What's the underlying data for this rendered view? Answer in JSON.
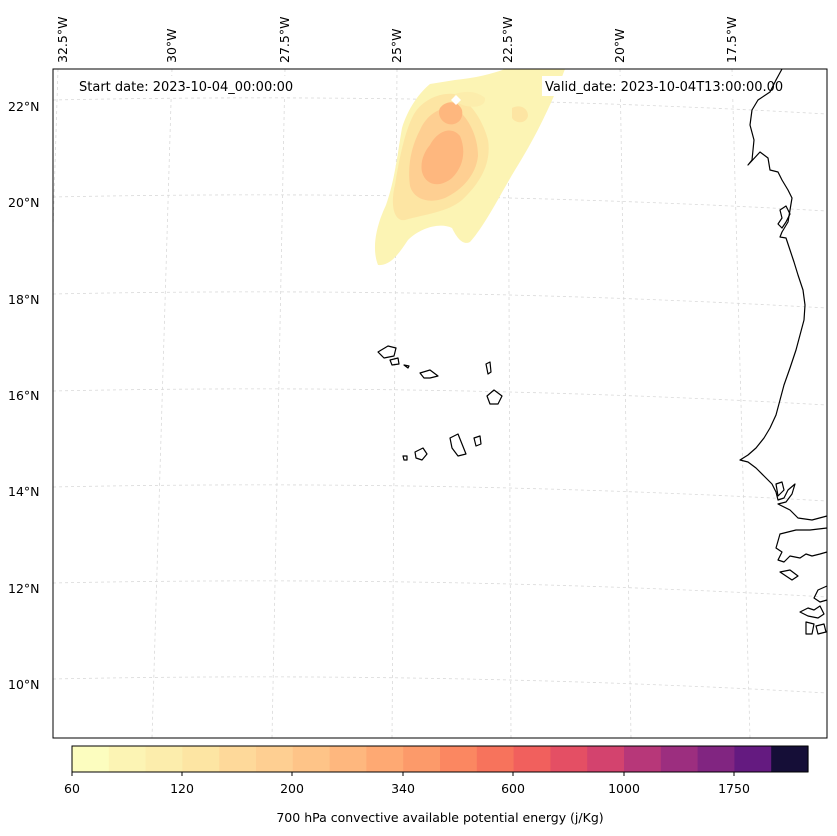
{
  "header": {
    "start_date": "Start date: 2023-10-04_00:00:00",
    "valid_date": "Valid_date: 2023-10-04T13:00:00.00"
  },
  "map": {
    "lon_labels": [
      "32.5°W",
      "30°W",
      "27.5°W",
      "25°W",
      "22.5°W",
      "20°W",
      "17.5°W"
    ],
    "lat_labels": [
      "22°N",
      "20°N",
      "18°N",
      "16°N",
      "14°N",
      "12°N",
      "10°N"
    ],
    "colors": {
      "coast": "#000000",
      "grid": "#cccccc",
      "frame": "#000000"
    }
  },
  "colorbar": {
    "title": "700 hPa convective available potential energy (j/Kg)",
    "tick_labels": [
      "60",
      "120",
      "200",
      "340",
      "600",
      "1000",
      "1750"
    ],
    "levels": [
      60,
      80,
      100,
      120,
      140,
      170,
      200,
      240,
      280,
      340,
      400,
      480,
      600,
      700,
      850,
      1000,
      1200,
      1450,
      1750,
      2000,
      2400
    ],
    "colors": [
      "#fcfdbf",
      "#fcf4b4",
      "#fcedac",
      "#fde5a3",
      "#fed99a",
      "#fecf92",
      "#fec488",
      "#feb77e",
      "#fea973",
      "#fc9a6a",
      "#fb8761",
      "#f7735c",
      "#f1605d",
      "#e44f64",
      "#d3436e",
      "#b73779",
      "#9c2e7f",
      "#812581",
      "#641a80",
      "#150e37"
    ]
  }
}
